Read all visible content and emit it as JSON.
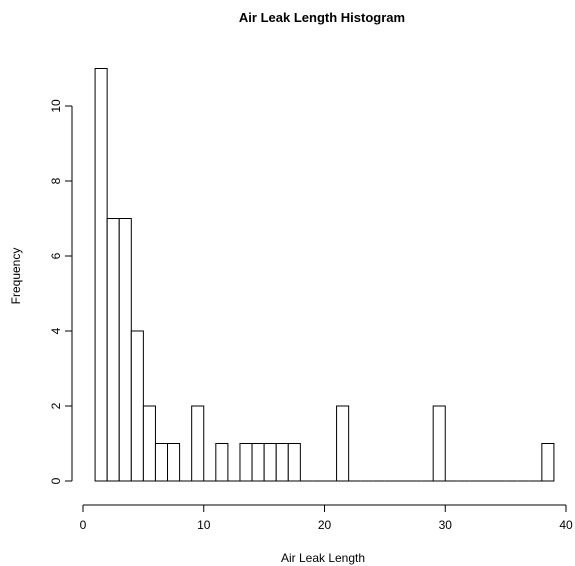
{
  "chart_data": {
    "type": "bar",
    "title": "Air Leak Length Histogram",
    "xlabel": "Air Leak Length",
    "ylabel": "Frequency",
    "bin_width": 1,
    "bins": [
      {
        "x0": 1,
        "x1": 2,
        "count": 11
      },
      {
        "x0": 2,
        "x1": 3,
        "count": 7
      },
      {
        "x0": 3,
        "x1": 4,
        "count": 7
      },
      {
        "x0": 4,
        "x1": 5,
        "count": 4
      },
      {
        "x0": 5,
        "x1": 6,
        "count": 2
      },
      {
        "x0": 6,
        "x1": 7,
        "count": 1
      },
      {
        "x0": 7,
        "x1": 8,
        "count": 1
      },
      {
        "x0": 8,
        "x1": 9,
        "count": 0
      },
      {
        "x0": 9,
        "x1": 10,
        "count": 2
      },
      {
        "x0": 10,
        "x1": 11,
        "count": 0
      },
      {
        "x0": 11,
        "x1": 12,
        "count": 1
      },
      {
        "x0": 12,
        "x1": 13,
        "count": 0
      },
      {
        "x0": 13,
        "x1": 14,
        "count": 1
      },
      {
        "x0": 14,
        "x1": 15,
        "count": 1
      },
      {
        "x0": 15,
        "x1": 16,
        "count": 1
      },
      {
        "x0": 16,
        "x1": 17,
        "count": 1
      },
      {
        "x0": 17,
        "x1": 18,
        "count": 1
      },
      {
        "x0": 18,
        "x1": 19,
        "count": 0
      },
      {
        "x0": 19,
        "x1": 20,
        "count": 0
      },
      {
        "x0": 20,
        "x1": 21,
        "count": 0
      },
      {
        "x0": 21,
        "x1": 22,
        "count": 2
      },
      {
        "x0": 22,
        "x1": 23,
        "count": 0
      },
      {
        "x0": 23,
        "x1": 24,
        "count": 0
      },
      {
        "x0": 24,
        "x1": 25,
        "count": 0
      },
      {
        "x0": 25,
        "x1": 26,
        "count": 0
      },
      {
        "x0": 26,
        "x1": 27,
        "count": 0
      },
      {
        "x0": 27,
        "x1": 28,
        "count": 0
      },
      {
        "x0": 28,
        "x1": 29,
        "count": 0
      },
      {
        "x0": 29,
        "x1": 30,
        "count": 2
      },
      {
        "x0": 30,
        "x1": 31,
        "count": 0
      },
      {
        "x0": 31,
        "x1": 32,
        "count": 0
      },
      {
        "x0": 32,
        "x1": 33,
        "count": 0
      },
      {
        "x0": 33,
        "x1": 34,
        "count": 0
      },
      {
        "x0": 34,
        "x1": 35,
        "count": 0
      },
      {
        "x0": 35,
        "x1": 36,
        "count": 0
      },
      {
        "x0": 36,
        "x1": 37,
        "count": 0
      },
      {
        "x0": 37,
        "x1": 38,
        "count": 0
      },
      {
        "x0": 38,
        "x1": 39,
        "count": 1
      }
    ],
    "xlim": [
      0,
      40
    ],
    "ylim": [
      0,
      11
    ],
    "x_ticks": [
      0,
      10,
      20,
      30,
      40
    ],
    "y_ticks": [
      0,
      2,
      4,
      6,
      8,
      10
    ],
    "grid": false,
    "bar_fill": "#ffffff",
    "bar_stroke": "#000000"
  }
}
